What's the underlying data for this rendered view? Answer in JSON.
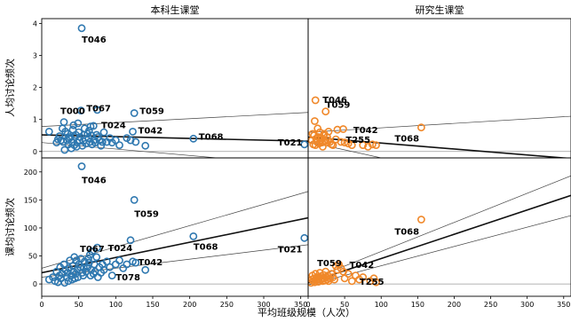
{
  "chart_data": {
    "type": "scatter",
    "xlabel": "平均班级规模（人次）",
    "ylabels": [
      "人均讨论频次",
      "课均讨论频次"
    ],
    "panel_titles": [
      "本科生课堂",
      "研究生课堂"
    ],
    "xlim": [
      0,
      360
    ],
    "xticks": [
      0,
      50,
      100,
      150,
      200,
      250,
      300,
      350
    ],
    "colors": {
      "undergrad": "#2f78b0",
      "graduate": "#f0882a"
    },
    "panels": [
      {
        "row": 0,
        "col": 0,
        "group": "undergrad",
        "ylim": [
          -0.2,
          4.15
        ],
        "yticks": [
          0,
          1,
          2,
          3,
          4
        ],
        "points": [
          [
            10,
            0.62
          ],
          [
            20,
            0.28
          ],
          [
            22,
            0.38
          ],
          [
            24,
            0.48
          ],
          [
            26,
            0.35
          ],
          [
            28,
            0.72
          ],
          [
            29,
            0.3
          ],
          [
            30,
            0.92
          ],
          [
            31,
            0.05
          ],
          [
            32,
            0.62
          ],
          [
            34,
            0.35
          ],
          [
            35,
            0.55
          ],
          [
            36,
            0.22
          ],
          [
            37,
            0.4
          ],
          [
            38,
            0.45
          ],
          [
            40,
            0.1
          ],
          [
            41,
            0.3
          ],
          [
            42,
            0.68
          ],
          [
            43,
            0.82
          ],
          [
            44,
            0.2
          ],
          [
            45,
            0.45
          ],
          [
            46,
            0.52
          ],
          [
            47,
            0.15
          ],
          [
            48,
            0.28
          ],
          [
            49,
            0.88
          ],
          [
            50,
            0.6
          ],
          [
            51,
            0.35
          ],
          [
            52,
            0.45
          ],
          [
            53,
            1.28
          ],
          [
            54,
            3.85
          ],
          [
            55,
            0.18
          ],
          [
            56,
            0.32
          ],
          [
            57,
            0.52
          ],
          [
            58,
            0.72
          ],
          [
            60,
            0.25
          ],
          [
            62,
            0.55
          ],
          [
            63,
            0.42
          ],
          [
            64,
            0.65
          ],
          [
            65,
            0.3
          ],
          [
            66,
            0.78
          ],
          [
            67,
            0.5
          ],
          [
            68,
            0.22
          ],
          [
            70,
            0.8
          ],
          [
            71,
            0.35
          ],
          [
            72,
            0.28
          ],
          [
            74,
            0.52
          ],
          [
            75,
            1.3
          ],
          [
            76,
            0.45
          ],
          [
            78,
            0.35
          ],
          [
            80,
            0.18
          ],
          [
            82,
            0.3
          ],
          [
            84,
            0.6
          ],
          [
            88,
            0.3
          ],
          [
            92,
            0.42
          ],
          [
            95,
            0.28
          ],
          [
            100,
            0.35
          ],
          [
            105,
            0.2
          ],
          [
            115,
            0.42
          ],
          [
            120,
            0.35
          ],
          [
            123,
            0.62
          ],
          [
            125,
            1.2
          ],
          [
            127,
            0.3
          ],
          [
            140,
            0.18
          ],
          [
            205,
            0.4
          ],
          [
            355,
            0.22
          ]
        ],
        "labels": [
          {
            "text": "T046",
            "x": 54,
            "y": 3.85,
            "dx": 0,
            "dy": 16
          },
          {
            "text": "T000",
            "x": 30,
            "y": 0.92,
            "dx": -4,
            "dy": -9
          },
          {
            "text": "T067",
            "x": 53,
            "y": 1.28,
            "dx": 6,
            "dy": 1
          },
          {
            "text": "T024",
            "x": 66,
            "y": 0.78,
            "dx": 12,
            "dy": 2
          },
          {
            "text": "T059",
            "x": 125,
            "y": 1.2,
            "dx": 6,
            "dy": 1
          },
          {
            "text": "T042",
            "x": 123,
            "y": 0.62,
            "dx": 6,
            "dy": 2
          },
          {
            "text": "T068",
            "x": 205,
            "y": 0.4,
            "dx": 6,
            "dy": 1
          },
          {
            "text": "T021",
            "x": 355,
            "y": 0.22,
            "dx": -30,
            "dy": 1
          }
        ],
        "fit": [
          [
            0,
            0.52
          ],
          [
            360,
            0.32
          ]
        ],
        "ci_upper": [
          [
            0,
            0.78
          ],
          [
            360,
            1.22
          ]
        ],
        "ci_lower": [
          [
            0,
            0.28
          ],
          [
            360,
            -0.45
          ]
        ]
      },
      {
        "row": 0,
        "col": 1,
        "group": "graduate",
        "ylim": [
          -0.2,
          4.15
        ],
        "yticks": [
          0,
          1,
          2,
          3,
          4
        ],
        "points": [
          [
            5,
            0.35
          ],
          [
            6,
            0.55
          ],
          [
            7,
            0.22
          ],
          [
            8,
            0.5
          ],
          [
            9,
            0.95
          ],
          [
            10,
            0.2
          ],
          [
            10,
            1.6
          ],
          [
            11,
            0.4
          ],
          [
            12,
            0.3
          ],
          [
            13,
            0.72
          ],
          [
            14,
            0.45
          ],
          [
            15,
            0.25
          ],
          [
            16,
            0.6
          ],
          [
            17,
            0.35
          ],
          [
            18,
            0.42
          ],
          [
            19,
            0.28
          ],
          [
            20,
            0.15
          ],
          [
            21,
            0.5
          ],
          [
            22,
            0.55
          ],
          [
            23,
            0.32
          ],
          [
            24,
            1.25
          ],
          [
            25,
            0.28
          ],
          [
            26,
            0.45
          ],
          [
            27,
            0.35
          ],
          [
            28,
            0.62
          ],
          [
            30,
            0.3
          ],
          [
            32,
            0.22
          ],
          [
            34,
            0.2
          ],
          [
            38,
            0.38
          ],
          [
            40,
            0.68
          ],
          [
            45,
            0.3
          ],
          [
            48,
            0.7
          ],
          [
            50,
            0.28
          ],
          [
            55,
            0.25
          ],
          [
            60,
            0.2
          ],
          [
            75,
            0.2
          ],
          [
            82,
            0.15
          ],
          [
            88,
            0.22
          ],
          [
            93,
            0.2
          ],
          [
            155,
            0.75
          ]
        ],
        "labels": [
          {
            "text": "T046",
            "x": 10,
            "y": 1.6,
            "dx": 8,
            "dy": 3
          },
          {
            "text": "T059",
            "x": 24,
            "y": 1.25,
            "dx": 0,
            "dy": -4
          },
          {
            "text": "T042",
            "x": 40,
            "y": 0.68,
            "dx": 18,
            "dy": 4
          },
          {
            "text": "T255",
            "x": 88,
            "y": 0.22,
            "dx": -30,
            "dy": -2
          },
          {
            "text": "T068",
            "x": 155,
            "y": 0.75,
            "dx": -30,
            "dy": 16
          }
        ],
        "fit": [
          [
            0,
            0.45
          ],
          [
            360,
            -0.22
          ]
        ],
        "ci_upper": [
          [
            0,
            0.6
          ],
          [
            360,
            1.1
          ]
        ],
        "ci_lower": [
          [
            0,
            0.3
          ],
          [
            360,
            -1.5
          ]
        ]
      },
      {
        "row": 1,
        "col": 0,
        "group": "undergrad",
        "ylim": [
          -22,
          225
        ],
        "yticks": [
          0,
          50,
          100,
          150,
          200
        ],
        "points": [
          [
            10,
            8
          ],
          [
            15,
            12
          ],
          [
            18,
            5
          ],
          [
            20,
            22
          ],
          [
            22,
            3
          ],
          [
            24,
            15
          ],
          [
            25,
            30
          ],
          [
            26,
            10
          ],
          [
            28,
            18
          ],
          [
            30,
            35
          ],
          [
            31,
            2
          ],
          [
            32,
            25
          ],
          [
            34,
            12
          ],
          [
            35,
            20
          ],
          [
            36,
            5
          ],
          [
            37,
            28
          ],
          [
            38,
            42
          ],
          [
            40,
            15
          ],
          [
            41,
            8
          ],
          [
            42,
            32
          ],
          [
            43,
            22
          ],
          [
            44,
            48
          ],
          [
            45,
            10
          ],
          [
            46,
            18
          ],
          [
            47,
            42
          ],
          [
            48,
            26
          ],
          [
            49,
            12
          ],
          [
            50,
            35
          ],
          [
            52,
            30
          ],
          [
            53,
            45
          ],
          [
            54,
            210
          ],
          [
            55,
            20
          ],
          [
            56,
            15
          ],
          [
            57,
            28
          ],
          [
            58,
            40
          ],
          [
            60,
            22
          ],
          [
            62,
            30
          ],
          [
            63,
            45
          ],
          [
            64,
            38
          ],
          [
            65,
            52
          ],
          [
            66,
            15
          ],
          [
            67,
            25
          ],
          [
            68,
            58
          ],
          [
            70,
            18
          ],
          [
            71,
            35
          ],
          [
            72,
            22
          ],
          [
            74,
            48
          ],
          [
            75,
            65
          ],
          [
            76,
            12
          ],
          [
            78,
            30
          ],
          [
            80,
            20
          ],
          [
            82,
            35
          ],
          [
            84,
            25
          ],
          [
            88,
            40
          ],
          [
            92,
            30
          ],
          [
            95,
            15
          ],
          [
            100,
            35
          ],
          [
            105,
            42
          ],
          [
            110,
            28
          ],
          [
            115,
            35
          ],
          [
            120,
            78
          ],
          [
            123,
            40
          ],
          [
            125,
            150
          ],
          [
            127,
            38
          ],
          [
            140,
            25
          ],
          [
            205,
            85
          ],
          [
            355,
            82
          ]
        ],
        "labels": [
          {
            "text": "T046",
            "x": 54,
            "y": 210,
            "dx": 0,
            "dy": 19
          },
          {
            "text": "T059",
            "x": 125,
            "y": 150,
            "dx": 0,
            "dy": 19
          },
          {
            "text": "T067",
            "x": 66,
            "y": 62,
            "dx": -12,
            "dy": 3
          },
          {
            "text": "T024",
            "x": 75,
            "y": 65,
            "dx": 12,
            "dy": 4
          },
          {
            "text": "T068",
            "x": 205,
            "y": 85,
            "dx": 0,
            "dy": 15
          },
          {
            "text": "T042",
            "x": 123,
            "y": 40,
            "dx": 6,
            "dy": 4
          },
          {
            "text": "T078",
            "x": 100,
            "y": 35,
            "dx": 0,
            "dy": 18
          },
          {
            "text": "T021",
            "x": 355,
            "y": 82,
            "dx": -30,
            "dy": 16
          }
        ],
        "fit": [
          [
            0,
            20
          ],
          [
            360,
            118
          ]
        ],
        "ci_upper": [
          [
            0,
            28
          ],
          [
            360,
            165
          ]
        ],
        "ci_lower": [
          [
            0,
            12
          ],
          [
            360,
            70
          ]
        ]
      },
      {
        "row": 1,
        "col": 1,
        "group": "graduate",
        "ylim": [
          -22,
          225
        ],
        "yticks": [
          0,
          50,
          100,
          150,
          200
        ],
        "points": [
          [
            4,
            2
          ],
          [
            5,
            8
          ],
          [
            6,
            15
          ],
          [
            7,
            5
          ],
          [
            8,
            10
          ],
          [
            9,
            3
          ],
          [
            10,
            18
          ],
          [
            11,
            6
          ],
          [
            12,
            12
          ],
          [
            13,
            8
          ],
          [
            14,
            4
          ],
          [
            15,
            12
          ],
          [
            16,
            20
          ],
          [
            17,
            7
          ],
          [
            18,
            14
          ],
          [
            19,
            9
          ],
          [
            20,
            5
          ],
          [
            21,
            16
          ],
          [
            22,
            10
          ],
          [
            23,
            6
          ],
          [
            24,
            22
          ],
          [
            25,
            12
          ],
          [
            26,
            8
          ],
          [
            27,
            15
          ],
          [
            28,
            5
          ],
          [
            30,
            10
          ],
          [
            32,
            18
          ],
          [
            34,
            12
          ],
          [
            36,
            8
          ],
          [
            38,
            32
          ],
          [
            40,
            25
          ],
          [
            42,
            35
          ],
          [
            45,
            28
          ],
          [
            48,
            22
          ],
          [
            50,
            10
          ],
          [
            55,
            18
          ],
          [
            60,
            5
          ],
          [
            65,
            15
          ],
          [
            70,
            8
          ],
          [
            75,
            12
          ],
          [
            85,
            5
          ],
          [
            90,
            10
          ],
          [
            93,
            3
          ],
          [
            155,
            115
          ]
        ],
        "labels": [
          {
            "text": "T059",
            "x": 22,
            "y": 22,
            "dx": -8,
            "dy": -6
          },
          {
            "text": "T042",
            "x": 42,
            "y": 35,
            "dx": 12,
            "dy": 4
          },
          {
            "text": "T255",
            "x": 85,
            "y": 5,
            "dx": -12,
            "dy": 4
          },
          {
            "text": "T068",
            "x": 155,
            "y": 115,
            "dx": -30,
            "dy": 17
          }
        ],
        "fit": [
          [
            0,
            2
          ],
          [
            360,
            158
          ]
        ],
        "ci_upper": [
          [
            0,
            6
          ],
          [
            360,
            193
          ]
        ],
        "ci_lower": [
          [
            0,
            -2
          ],
          [
            360,
            122
          ]
        ]
      }
    ]
  }
}
